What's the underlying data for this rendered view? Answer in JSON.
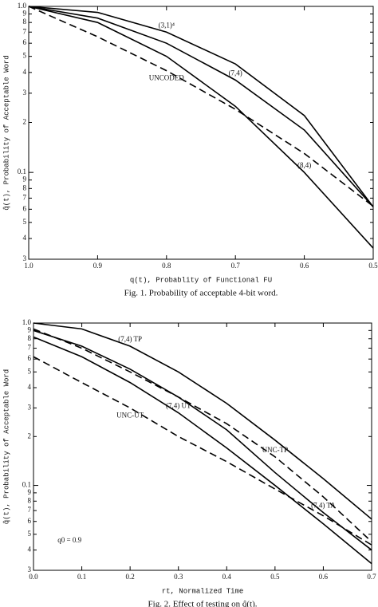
{
  "chart_data": [
    {
      "type": "line",
      "x_label": "q(t),  Probablity of Functional FU",
      "y_label": "q̂(t),  Probability of Acceptable Word",
      "caption": "Fig. 1. Probability of acceptable 4-bit word.",
      "x": [
        1,
        0.9,
        0.8,
        0.7,
        0.6,
        0.5
      ],
      "series": [
        {
          "name": "(3,1)⁴",
          "color": "#000000",
          "dash": false,
          "values": [
            1,
            0.92,
            0.7,
            0.45,
            0.22,
            0.062
          ]
        },
        {
          "name": "(7,4)",
          "color": "#000000",
          "dash": false,
          "values": [
            1,
            0.85,
            0.6,
            0.36,
            0.18,
            0.062
          ]
        },
        {
          "name": "(8,4)",
          "color": "#000000",
          "dash": false,
          "values": [
            1,
            0.8,
            0.5,
            0.25,
            0.1,
            0.035
          ]
        },
        {
          "name": "UNCODED",
          "color": "#000000",
          "dash": true,
          "values": [
            1,
            0.656,
            0.41,
            0.24,
            0.13,
            0.0625
          ]
        }
      ],
      "xlim": [
        1,
        0.5
      ],
      "xticks": [
        {
          "value": 1,
          "label": "1.0"
        },
        0.9,
        0.8,
        0.7,
        0.6,
        0.5
      ],
      "ylog": true,
      "ylim": [
        0.03,
        1
      ],
      "yticks": [
        {
          "value": 1,
          "label": "1.0"
        },
        {
          "value": 0.9,
          "label": "9"
        },
        {
          "value": 0.8,
          "label": "8"
        },
        {
          "value": 0.7,
          "label": "7"
        },
        {
          "value": 0.6,
          "label": "6"
        },
        {
          "value": 0.5,
          "label": "5"
        },
        {
          "value": 0.4,
          "label": "4"
        },
        {
          "value": 0.3,
          "label": "3"
        },
        {
          "value": 0.2,
          "label": "2"
        },
        0.1,
        {
          "value": 0.09,
          "label": "9"
        },
        {
          "value": 0.08,
          "label": "8"
        },
        {
          "value": 0.07,
          "label": "7"
        },
        {
          "value": 0.06,
          "label": "6"
        },
        {
          "value": 0.05,
          "label": "5"
        },
        {
          "value": 0.04,
          "label": "4"
        },
        {
          "value": 0.03,
          "label": "3"
        }
      ]
    },
    {
      "type": "line",
      "x_label": "rt,  Normalized Time",
      "y_label": "q̂(t),  Probability of Acceptable Word",
      "caption": "Fig. 2. Effect of testing on q̂(t).",
      "annotation": "q0 = 0.9",
      "x": [
        0,
        0.1,
        0.2,
        0.3,
        0.4,
        0.5,
        0.6,
        0.7
      ],
      "series": [
        {
          "name": "(7,4) TP",
          "color": "#000000",
          "dash": false,
          "values": [
            1,
            0.92,
            0.72,
            0.5,
            0.32,
            0.19,
            0.11,
            0.062
          ]
        },
        {
          "name": "UNC-TP",
          "color": "#000000",
          "dash": true,
          "values": [
            0.92,
            0.7,
            0.5,
            0.35,
            0.24,
            0.15,
            0.085,
            0.045
          ]
        },
        {
          "name": "(7,4) TA",
          "color": "#000000",
          "dash": false,
          "values": [
            0.9,
            0.72,
            0.52,
            0.35,
            0.22,
            0.12,
            0.068,
            0.04
          ]
        },
        {
          "name": "(7,4) UT",
          "color": "#000000",
          "dash": false,
          "values": [
            0.82,
            0.62,
            0.43,
            0.28,
            0.17,
            0.1,
            0.058,
            0.033
          ]
        },
        {
          "name": "UNC-UT",
          "color": "#000000",
          "dash": true,
          "values": [
            0.62,
            0.43,
            0.3,
            0.2,
            0.14,
            0.095,
            0.065,
            0.043
          ]
        }
      ],
      "xlim": [
        0,
        0.7
      ],
      "xticks": [
        {
          "value": 0,
          "label": "0.0"
        },
        0.1,
        0.2,
        0.3,
        0.4,
        0.5,
        0.6,
        0.7
      ],
      "ylog": true,
      "ylim": [
        0.03,
        1
      ],
      "yticks": [
        {
          "value": 1,
          "label": "1.0"
        },
        {
          "value": 0.9,
          "label": "9"
        },
        {
          "value": 0.8,
          "label": "8"
        },
        {
          "value": 0.7,
          "label": "7"
        },
        {
          "value": 0.6,
          "label": "6"
        },
        {
          "value": 0.5,
          "label": "5"
        },
        {
          "value": 0.4,
          "label": "4"
        },
        {
          "value": 0.3,
          "label": "3"
        },
        {
          "value": 0.2,
          "label": "2"
        },
        0.1,
        {
          "value": 0.09,
          "label": "9"
        },
        {
          "value": 0.08,
          "label": "8"
        },
        {
          "value": 0.07,
          "label": "7"
        },
        {
          "value": 0.06,
          "label": "6"
        },
        {
          "value": 0.05,
          "label": "5"
        },
        {
          "value": 0.04,
          "label": "4"
        },
        {
          "value": 0.03,
          "label": "3"
        }
      ]
    }
  ]
}
